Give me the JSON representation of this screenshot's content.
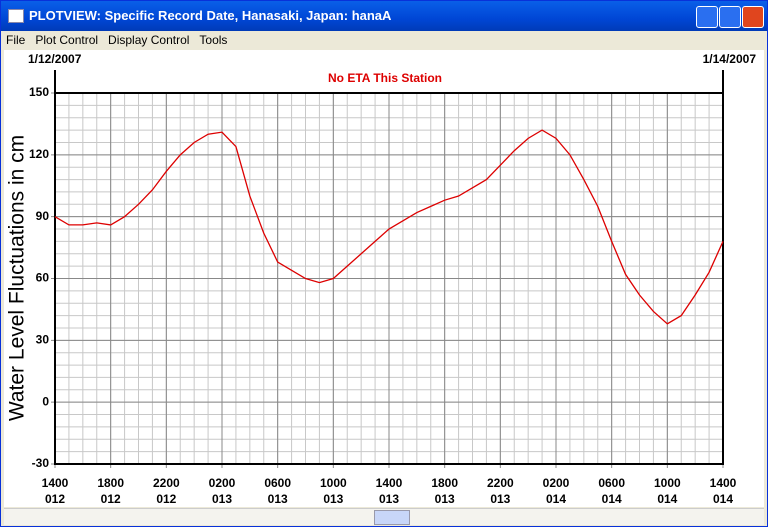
{
  "window": {
    "title": "PLOTVIEW: Specific Record Date, Hanasaki, Japan: hanaA"
  },
  "menu": [
    "File",
    "Plot Control",
    "Display Control",
    "Tools"
  ],
  "chart_data": {
    "type": "line",
    "start_date": "1/12/2007",
    "end_date": "1/14/2007",
    "subtitle": "No ETA This Station",
    "y_label": "Water Level Fluctuations in cm",
    "xlim": [
      0,
      48
    ],
    "ylim": [
      -30,
      150
    ],
    "yticks": [
      -30,
      0,
      30,
      60,
      90,
      120,
      150
    ],
    "grid": true,
    "xticks": [
      {
        "value": 0,
        "label": [
          "1400",
          "012"
        ]
      },
      {
        "value": 4,
        "label": [
          "1800",
          "012"
        ]
      },
      {
        "value": 8,
        "label": [
          "2200",
          "012"
        ]
      },
      {
        "value": 12,
        "label": [
          "0200",
          "013"
        ]
      },
      {
        "value": 16,
        "label": [
          "0600",
          "013"
        ]
      },
      {
        "value": 20,
        "label": [
          "1000",
          "013"
        ]
      },
      {
        "value": 24,
        "label": [
          "1400",
          "013"
        ]
      },
      {
        "value": 28,
        "label": [
          "1800",
          "013"
        ]
      },
      {
        "value": 32,
        "label": [
          "2200",
          "013"
        ]
      },
      {
        "value": 36,
        "label": [
          "0200",
          "014"
        ]
      },
      {
        "value": 40,
        "label": [
          "0600",
          "014"
        ]
      },
      {
        "value": 44,
        "label": [
          "1000",
          "014"
        ]
      },
      {
        "value": 48,
        "label": [
          "1400",
          "014"
        ]
      }
    ],
    "x": [
      0,
      1,
      2,
      3,
      4,
      5,
      6,
      7,
      8,
      9,
      10,
      11,
      12,
      13,
      14,
      15,
      16,
      17,
      18,
      19,
      20,
      21,
      22,
      23,
      24,
      25,
      26,
      27,
      28,
      29,
      30,
      31,
      32,
      33,
      34,
      35,
      36,
      37,
      38,
      39,
      40,
      41,
      42,
      43,
      44,
      45,
      46,
      47,
      48
    ],
    "series": [
      {
        "color": "#dd0000",
        "values": [
          90,
          86,
          86,
          87,
          86,
          90,
          96,
          103,
          112,
          120,
          126,
          130,
          131,
          124,
          100,
          82,
          68,
          64,
          60,
          58,
          60,
          66,
          72,
          78,
          84,
          88,
          92,
          95,
          98,
          100,
          104,
          108,
          115,
          122,
          128,
          132,
          128,
          120,
          108,
          95,
          78,
          62,
          52,
          44,
          38,
          42,
          52,
          63,
          78
        ]
      }
    ]
  }
}
